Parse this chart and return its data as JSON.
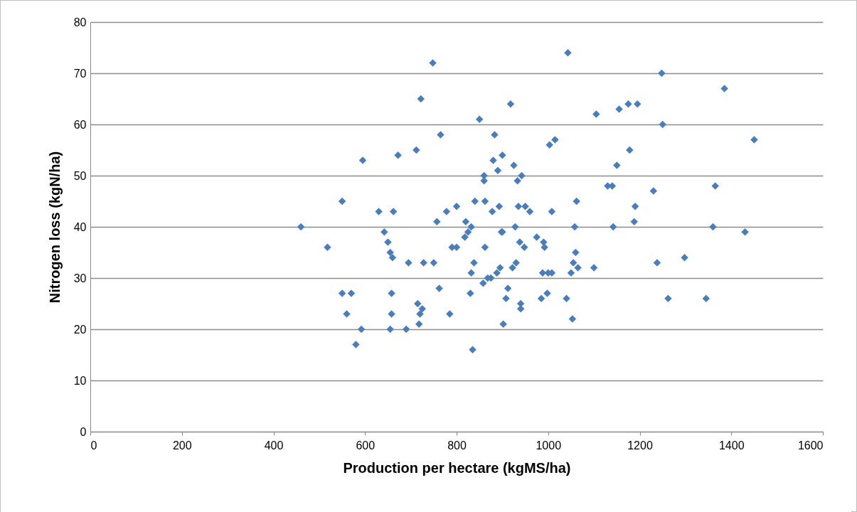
{
  "chart_data": {
    "type": "scatter",
    "xlabel": "Production per hectare (kgMS/ha)",
    "ylabel": "Nitrogen loss (kgN/ha)",
    "xlim": [
      0,
      1600
    ],
    "xticks": [
      0,
      200,
      400,
      600,
      800,
      1000,
      1200,
      1400,
      1600
    ],
    "ylim": [
      0,
      80
    ],
    "yticks": [
      0,
      10,
      20,
      30,
      40,
      50,
      60,
      70,
      80
    ],
    "grid": "y",
    "marker": "diamond",
    "series": [
      {
        "color": "#4a7ebb",
        "x": [
          460,
          518,
          550,
          550,
          560,
          570,
          580,
          592,
          595,
          630,
          642,
          650,
          655,
          655,
          658,
          658,
          660,
          662,
          672,
          690,
          695,
          712,
          715,
          718,
          720,
          722,
          725,
          728,
          748,
          750,
          757,
          762,
          765,
          778,
          785,
          790,
          800,
          800,
          818,
          820,
          825,
          830,
          832,
          832,
          835,
          838,
          840,
          850,
          858,
          860,
          860,
          862,
          862,
          868,
          875,
          878,
          880,
          883,
          888,
          890,
          893,
          895,
          898,
          900,
          900,
          902,
          908,
          912,
          918,
          922,
          925,
          928,
          930,
          933,
          935,
          938,
          940,
          940,
          942,
          948,
          950,
          960,
          975,
          985,
          988,
          990,
          992,
          998,
          1000,
          1003,
          1008,
          1008,
          1015,
          1040,
          1043,
          1050,
          1053,
          1055,
          1058,
          1060,
          1062,
          1065,
          1100,
          1105,
          1130,
          1140,
          1142,
          1150,
          1155,
          1175,
          1178,
          1188,
          1190,
          1195,
          1230,
          1238,
          1248,
          1250,
          1262,
          1298,
          1345,
          1360,
          1365,
          1385,
          1430,
          1450
        ],
        "values": [
          40,
          36,
          45,
          27,
          23,
          27,
          17,
          20,
          53,
          43,
          39,
          37,
          35,
          20,
          23,
          27,
          34,
          43,
          54,
          20,
          33,
          55,
          25,
          21,
          23,
          65,
          24,
          33,
          72,
          33,
          41,
          28,
          58,
          43,
          23,
          36,
          36,
          44,
          38,
          41,
          39,
          27,
          31,
          40,
          16,
          33,
          45,
          61,
          29,
          50,
          49,
          36,
          45,
          30,
          30,
          43,
          53,
          58,
          31,
          51,
          44,
          32,
          39,
          54,
          39,
          21,
          26,
          28,
          64,
          32,
          52,
          40,
          33,
          49,
          44,
          37,
          25,
          24,
          50,
          36,
          44,
          43,
          38,
          26,
          31,
          37,
          36,
          27,
          31,
          56,
          31,
          43,
          57,
          26,
          74,
          31,
          22,
          33,
          40,
          35,
          45,
          32,
          32,
          62,
          48,
          48,
          40,
          52,
          63,
          64,
          55,
          41,
          44,
          64,
          47,
          33,
          70,
          60,
          26,
          34,
          26,
          40,
          48,
          67,
          39,
          57
        ]
      }
    ]
  }
}
